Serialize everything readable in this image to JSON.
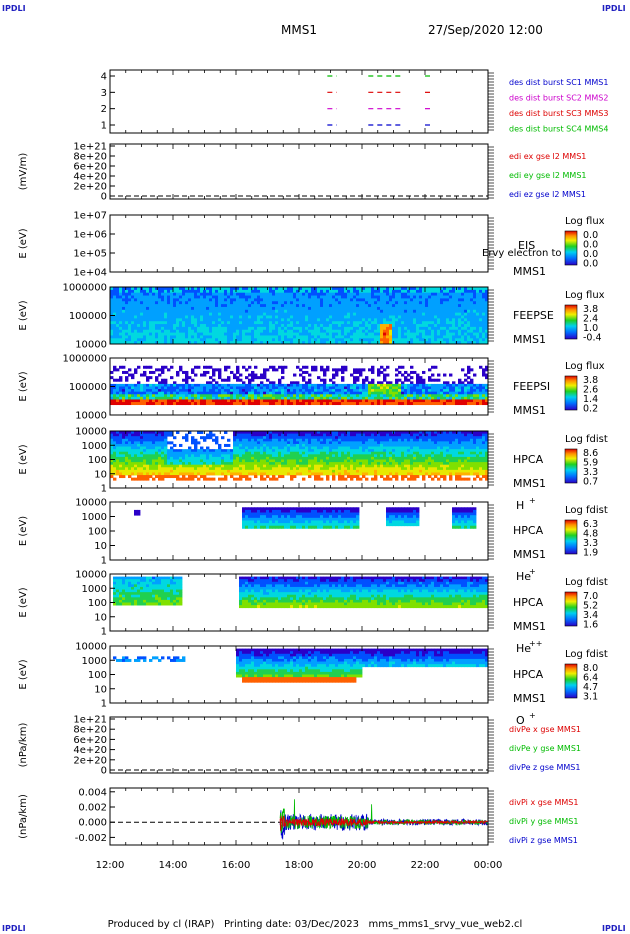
{
  "corner_label": "IPDLI",
  "header": {
    "spacecraft": "MMS1",
    "datetime": "27/Sep/2020 12:00"
  },
  "footer": "Produced by cl (IRAP)   Printing date: 03/Dec/2023   mms_mms1_srvy_vue_web2.cl",
  "colors": {
    "mms1": "#0000cc",
    "mms2": "#cc00cc",
    "mms3": "#dd0000",
    "mms4": "#00bb00",
    "axis": "#000000"
  },
  "chart_data": [
    {
      "type": "line",
      "panel": "burst",
      "xlabel": "",
      "ylabel": "",
      "yticks": [
        "4",
        "3",
        "2",
        "1"
      ],
      "legend": [
        {
          "text": "des dist burst SC1 MMS1",
          "color": "#0000cc"
        },
        {
          "text": "des dist burst SC2 MMS2",
          "color": "#cc00cc"
        },
        {
          "text": "des dist burst SC3 MMS3",
          "color": "#dd0000"
        },
        {
          "text": "des dist burst SC4 MMS4",
          "color": "#00bb00"
        }
      ],
      "burst_intervals_hours": [
        [
          18.9,
          19.2
        ],
        [
          20.2,
          21.3
        ],
        [
          22.0,
          22.2
        ]
      ]
    },
    {
      "type": "line",
      "panel": "edi",
      "ylabel": "(mV/m)",
      "yticks": [
        "1e+21",
        "8e+20",
        "6e+20",
        "4e+20",
        "2e+20",
        "0"
      ],
      "legend": [
        {
          "text": "edi ex gse l2 MMS1",
          "color": "#dd0000"
        },
        {
          "text": "edi ey gse l2 MMS1",
          "color": "#00bb00"
        },
        {
          "text": "edi ez gse l2 MMS1",
          "color": "#0000cc"
        }
      ]
    },
    {
      "type": "heatmap",
      "panel": "eis",
      "ylabel": "E (eV)",
      "yticks": [
        "1e+07",
        "1e+06",
        "1e+05",
        "1e+04"
      ],
      "instrument": "EIS",
      "spacecraft": "MMS1",
      "overlay": "Ervy electron to",
      "cbar_title": "Log flux",
      "cbar_ticks": [
        "0.0",
        "0.0",
        "0.0",
        "0.0"
      ]
    },
    {
      "type": "heatmap",
      "panel": "feeps_e",
      "ylabel": "E (eV)",
      "yticks": [
        "1000000",
        "100000",
        "10000"
      ],
      "instrument": "FEEPSE",
      "spacecraft": "MMS1",
      "cbar_title": "Log flux",
      "cbar_ticks": [
        "3.8",
        "2.4",
        "1.0",
        "-0.4"
      ]
    },
    {
      "type": "heatmap",
      "panel": "feeps_i",
      "ylabel": "E (eV)",
      "yticks": [
        "1000000",
        "100000",
        "10000"
      ],
      "instrument": "FEEPSI",
      "spacecraft": "MMS1",
      "cbar_title": "Log flux",
      "cbar_ticks": [
        "3.8",
        "2.6",
        "1.4",
        "0.2"
      ]
    },
    {
      "type": "heatmap",
      "panel": "hpca_h",
      "ylabel": "E (eV)",
      "yticks": [
        "10000",
        "1000",
        "100",
        "10",
        "1"
      ],
      "instrument": "HPCA",
      "spacecraft": "MMS1",
      "species": "H",
      "charge": "+",
      "cbar_title": "Log fdist",
      "cbar_ticks": [
        "8.6",
        "5.9",
        "3.3",
        "0.7"
      ]
    },
    {
      "type": "heatmap",
      "panel": "hpca_he",
      "ylabel": "E (eV)",
      "yticks": [
        "10000",
        "1000",
        "100",
        "10",
        "1"
      ],
      "instrument": "HPCA",
      "spacecraft": "MMS1",
      "species": "He",
      "charge": "+",
      "cbar_title": "Log fdist",
      "cbar_ticks": [
        "6.3",
        "4.8",
        "3.3",
        "1.9"
      ]
    },
    {
      "type": "heatmap",
      "panel": "hpca_hepp",
      "ylabel": "E (eV)",
      "yticks": [
        "10000",
        "1000",
        "100",
        "10",
        "1"
      ],
      "instrument": "HPCA",
      "spacecraft": "MMS1",
      "species": "He",
      "charge": "++",
      "cbar_title": "Log fdist",
      "cbar_ticks": [
        "7.0",
        "5.2",
        "3.4",
        "1.6"
      ]
    },
    {
      "type": "heatmap",
      "panel": "hpca_o",
      "ylabel": "E (eV)",
      "yticks": [
        "10000",
        "1000",
        "100",
        "10",
        "1"
      ],
      "instrument": "HPCA",
      "spacecraft": "MMS1",
      "species": "O",
      "charge": "+",
      "cbar_title": "Log fdist",
      "cbar_ticks": [
        "8.0",
        "6.4",
        "4.7",
        "3.1"
      ]
    },
    {
      "type": "line",
      "panel": "divpe",
      "ylabel": "(nPa/km)",
      "yticks": [
        "1e+21",
        "8e+20",
        "6e+20",
        "4e+20",
        "2e+20",
        "0"
      ],
      "legend": [
        {
          "text": "divPe x gse MMS1",
          "color": "#dd0000"
        },
        {
          "text": "divPe y gse MMS1",
          "color": "#00bb00"
        },
        {
          "text": "divPe z gse MMS1",
          "color": "#0000cc"
        }
      ]
    },
    {
      "type": "line",
      "panel": "divpi",
      "ylabel": "(nPa/km)",
      "yticks": [
        "0.004",
        "0.002",
        "0.000",
        "-0.002"
      ],
      "ylim": [
        -0.003,
        0.0045
      ],
      "legend": [
        {
          "text": "divPi x gse MMS1",
          "color": "#dd0000"
        },
        {
          "text": "divPi y gse MMS1",
          "color": "#00bb00"
        },
        {
          "text": "divPi z gse MMS1",
          "color": "#0000cc"
        }
      ],
      "data_start_hours": 17.4,
      "xticks": [
        "12:00",
        "14:00",
        "16:00",
        "18:00",
        "20:00",
        "22:00",
        "00:00"
      ],
      "xlim_hours": [
        12,
        24
      ]
    }
  ]
}
